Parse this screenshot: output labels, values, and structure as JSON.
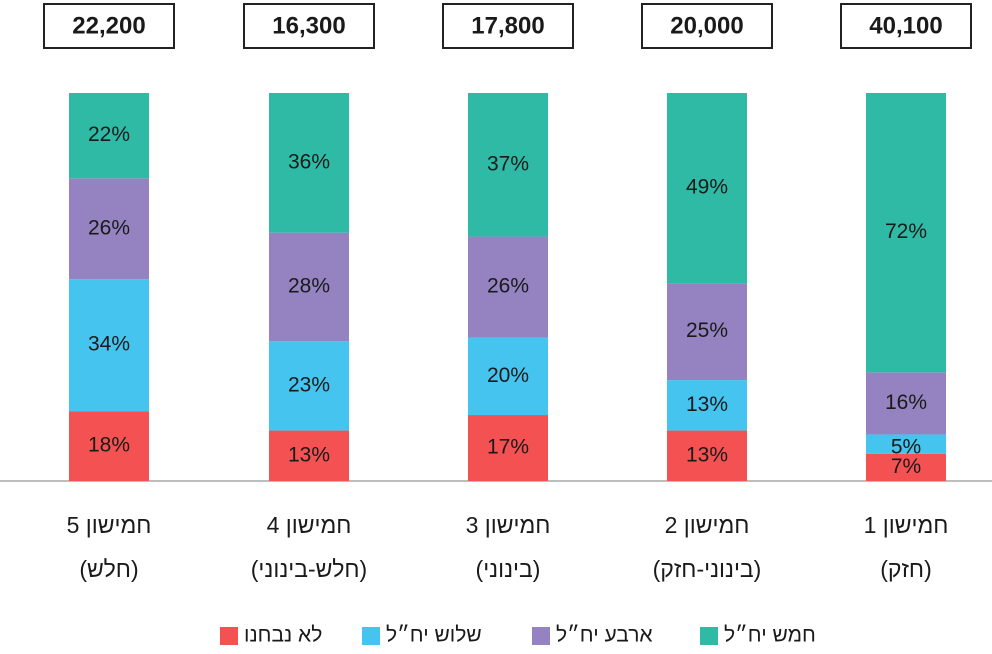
{
  "chart_data": {
    "type": "stacked_bar",
    "categories": [
      [
        "חמישון 5",
        "(חלש)"
      ],
      [
        "חמישון 4",
        "(חלש-בינוני)"
      ],
      [
        "חמישון 3",
        "(בינוני)"
      ],
      [
        "חמישון 2",
        "(בינוני-חזק)"
      ],
      [
        "חמישון 1",
        "(חזק)"
      ]
    ],
    "totals": {
      "values": [
        22200,
        16300,
        17800,
        20000,
        40100
      ],
      "value_labels": [
        "22,200",
        "16,300",
        "17,800",
        "20,000",
        "40,100"
      ]
    },
    "series": [
      {
        "name": "לא נבחנו",
        "color": "#f45252",
        "values": [
          18,
          13,
          17,
          13,
          7
        ],
        "value_labels": [
          "18%",
          "13%",
          "17%",
          "13%",
          "7%"
        ]
      },
      {
        "name": "שלוש יח״ל",
        "color": "#44c4ee",
        "values": [
          34,
          23,
          20,
          13,
          5
        ],
        "value_labels": [
          "34%",
          "23%",
          "20%",
          "13%",
          "5%"
        ]
      },
      {
        "name": "ארבע יח״ל",
        "color": "#9483c0",
        "values": [
          26,
          28,
          26,
          25,
          16
        ],
        "value_labels": [
          "26%",
          "28%",
          "26%",
          "25%",
          "16%"
        ]
      },
      {
        "name": "חמש יח״ל",
        "color": "#2fbaa6",
        "values": [
          22,
          36,
          37,
          49,
          72
        ],
        "value_labels": [
          "22%",
          "36%",
          "37%",
          "49%",
          "72%"
        ]
      }
    ]
  }
}
